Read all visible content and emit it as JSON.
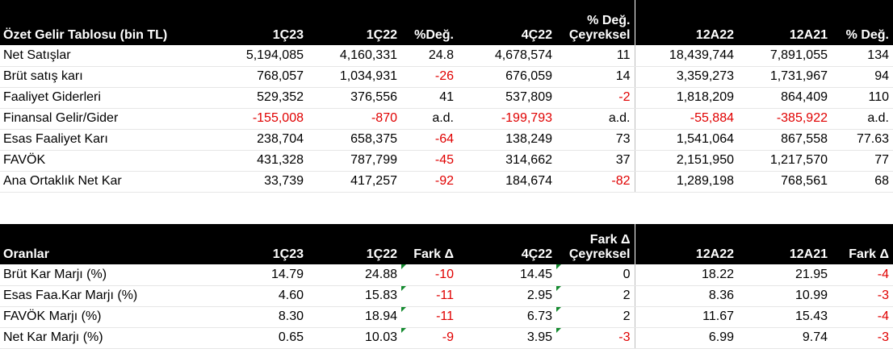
{
  "income_table": {
    "headers": [
      "Özet Gelir Tablosu (bin TL)",
      "1Ç23",
      "1Ç22",
      "%Değ.",
      "4Ç22",
      "% Değ.\nÇeyreksel",
      "12A22",
      "12A21",
      "% Değ."
    ],
    "header_q_top": "% Değ.",
    "header_q_bottom": "Çeyreksel",
    "rows": [
      {
        "label": "Net Satışlar",
        "c1": "5,194,085",
        "c2": "4,160,331",
        "c3": "24.8",
        "c4": "4,678,574",
        "c5": "11",
        "c6": "18,439,744",
        "c7": "7,891,055",
        "c8": "134"
      },
      {
        "label": "Brüt satış karı",
        "c1": "768,057",
        "c2": "1,034,931",
        "c3": "-26",
        "c4": "676,059",
        "c5": "14",
        "c6": "3,359,273",
        "c7": "1,731,967",
        "c8": "94"
      },
      {
        "label": "Faaliyet Giderleri",
        "c1": "529,352",
        "c2": "376,556",
        "c3": "41",
        "c4": "537,809",
        "c5": "-2",
        "c6": "1,818,209",
        "c7": "864,409",
        "c8": "110"
      },
      {
        "label": "Finansal Gelir/Gider",
        "c1": "-155,008",
        "c2": "-870",
        "c3": "a.d.",
        "c4": "-199,793",
        "c5": "a.d.",
        "c6": "-55,884",
        "c7": "-385,922",
        "c8": "a.d."
      },
      {
        "label": "Esas Faaliyet Karı",
        "c1": "238,704",
        "c2": "658,375",
        "c3": "-64",
        "c4": "138,249",
        "c5": "73",
        "c6": "1,541,064",
        "c7": "867,558",
        "c8": "77.63"
      },
      {
        "label": "FAVÖK",
        "c1": "431,328",
        "c2": "787,799",
        "c3": "-45",
        "c4": "314,662",
        "c5": "37",
        "c6": "2,151,950",
        "c7": "1,217,570",
        "c8": "77"
      },
      {
        "label": "Ana Ortaklık Net Kar",
        "c1": "33,739",
        "c2": "417,257",
        "c3": "-92",
        "c4": "184,674",
        "c5": "-82",
        "c6": "1,289,198",
        "c7": "768,561",
        "c8": "68"
      }
    ]
  },
  "ratio_table": {
    "headers": [
      "Oranlar",
      "1Ç23",
      "1Ç22",
      "Fark Δ",
      "4Ç22",
      "Fark Δ\nÇeyreksel",
      "12A22",
      "12A21",
      "Fark Δ"
    ],
    "header_q_top": "Fark Δ",
    "header_q_bottom": "Çeyreksel",
    "rows": [
      {
        "label": "Brüt Kar Marjı (%)",
        "c1": "14.79",
        "c2": "24.88",
        "c3": "-10",
        "c4": "14.45",
        "c5": "0",
        "c6": "18.22",
        "c7": "21.95",
        "c8": "-4"
      },
      {
        "label": "Esas Faa.Kar Marjı (%)",
        "c1": "4.60",
        "c2": "15.83",
        "c3": "-11",
        "c4": "2.95",
        "c5": "2",
        "c6": "8.36",
        "c7": "10.99",
        "c8": "-3"
      },
      {
        "label": "FAVÖK Marjı (%)",
        "c1": "8.30",
        "c2": "18.94",
        "c3": "-11",
        "c4": "6.73",
        "c5": "2",
        "c6": "11.67",
        "c7": "15.43",
        "c8": "-4"
      },
      {
        "label": "Net Kar Marjı (%)",
        "c1": "0.65",
        "c2": "10.03",
        "c3": "-9",
        "c4": "3.95",
        "c5": "-3",
        "c6": "6.99",
        "c7": "9.74",
        "c8": "-3"
      }
    ]
  },
  "colors": {
    "header_bg": "#000000",
    "header_text": "#ffffff",
    "negative": "#e00000",
    "flag": "#138a2e"
  }
}
